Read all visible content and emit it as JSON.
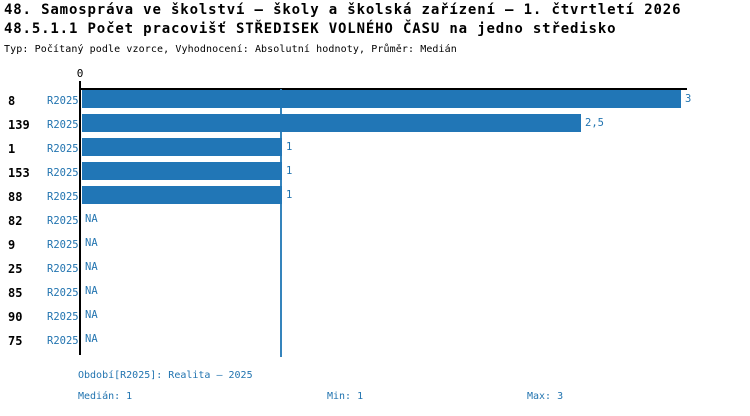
{
  "header": {
    "title_line1": "48. Samospráva ve školství – školy a školská zařízení – 1. čtvrtletí 2026",
    "title_line2": "48.5.1.1 Počet pracovišť STŘEDISEK VOLNÉHO ČASU na jedno středisko",
    "subtitle": "Typ: Počítaný podle vzorce, Vyhodnocení: Absolutní hodnoty, Průměr: Medián"
  },
  "chart_data": {
    "type": "bar",
    "orientation": "horizontal",
    "title": "48.5.1.1 Počet pracovišť STŘEDISEK VOLNÉHO ČASU na jedno středisko",
    "categories": [
      "8",
      "139",
      "1",
      "153",
      "88",
      "82",
      "9",
      "25",
      "85",
      "90",
      "75"
    ],
    "series": [
      {
        "name": "R2025",
        "values": [
          3,
          2.5,
          1,
          1,
          1,
          null,
          null,
          null,
          null,
          null,
          null
        ],
        "value_labels": [
          "3",
          "2,5",
          "1",
          "1",
          "1",
          "NA",
          "NA",
          "NA",
          "NA",
          "NA",
          "NA"
        ]
      }
    ],
    "na_text": "NA",
    "xlim": [
      0,
      3.03
    ],
    "x_tick_labels": [
      "0"
    ],
    "gridline_at": 1,
    "grid": "single-vertical-line-at-median",
    "legend_position": "bottom",
    "bar_color": "#2176b6"
  },
  "footer": {
    "period_label": "Období[R2025]: Realita – 2025",
    "median_label": "Medián: 1",
    "min_label": "Min: 1",
    "max_label": "Max: 3"
  },
  "colors": {
    "bar_blue": "#2176b6",
    "text_blue": "#2274b0",
    "grid_blue": "#3584bc",
    "axis_black": "#000000",
    "background": "#ffffff"
  }
}
